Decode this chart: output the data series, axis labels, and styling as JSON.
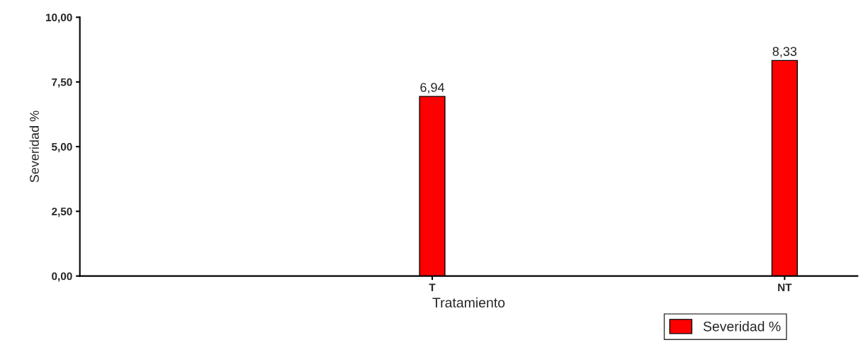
{
  "chart_data": {
    "type": "bar",
    "xlabel": "Tratamiento",
    "ylabel": "Severidad %",
    "categories": [
      "T",
      "NT"
    ],
    "series": [
      {
        "name": "Severidad %",
        "color": "#ff0000",
        "values": [
          6.94,
          8.33
        ],
        "value_labels": [
          "6,94",
          "8,33"
        ]
      }
    ],
    "ylim": [
      0,
      10
    ],
    "yticks": [
      {
        "value": 0,
        "label": "0,00"
      },
      {
        "value": 2.5,
        "label": "2,50"
      },
      {
        "value": 5,
        "label": "5,00"
      },
      {
        "value": 7.5,
        "label": "7,50"
      },
      {
        "value": 10,
        "label": "10,00"
      }
    ],
    "grid": false,
    "legend": "bottom"
  }
}
